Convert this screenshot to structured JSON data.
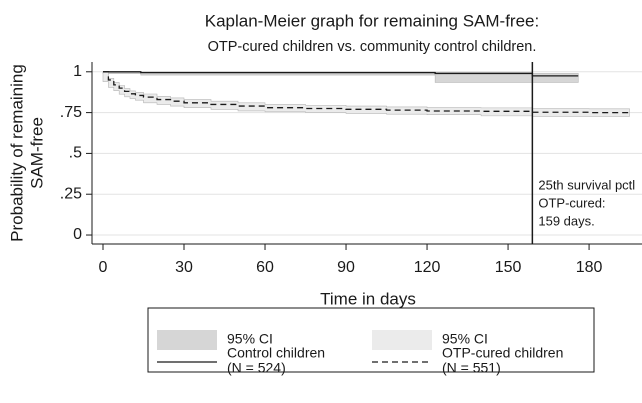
{
  "chart_data": {
    "type": "step",
    "title": "Kaplan-Meier graph for remaining SAM-free:",
    "subtitle": "OTP-cured children vs. community control children.",
    "xlabel": "Time in days",
    "ylabel": [
      "Probability of remaining",
      "SAM-free"
    ],
    "xlim": [
      -4.07,
      199.6
    ],
    "xticks": [
      0,
      30,
      60,
      90,
      120,
      150,
      180
    ],
    "ylim": [
      -0.055,
      1.06
    ],
    "yticks": [
      0,
      {
        "value": 0.25,
        "label": ".25"
      },
      {
        "value": 0.5,
        "label": ".5"
      },
      {
        "value": 0.75,
        "label": ".75"
      },
      1
    ],
    "grid": true,
    "series": [
      {
        "name": [
          "Control children",
          "(N = 524)"
        ],
        "color": "#1a1a1a",
        "dash": false,
        "ci_name": "95% CI",
        "ci_color": "#d6d6d6",
        "x": [
          0,
          14,
          123,
          159,
          176
        ],
        "values": [
          1,
          0.995,
          0.99,
          0.975,
          0.975
        ],
        "ci_lower": [
          1,
          0.988,
          0.98,
          0.935,
          0.935
        ],
        "ci_upper": [
          1,
          1,
          0.998,
          0.99,
          0.99
        ]
      },
      {
        "name": [
          "OTP-cured children",
          "(N = 551)"
        ],
        "color": "#1a1a1a",
        "dash": true,
        "ci_name": "95% CI",
        "ci_color": "#ebebeb",
        "x": [
          0,
          2,
          4,
          6,
          8,
          10,
          12,
          15,
          20,
          25,
          30,
          40,
          50,
          60,
          75,
          90,
          105,
          120,
          140,
          159,
          180,
          195
        ],
        "values": [
          1,
          0.95,
          0.92,
          0.9,
          0.88,
          0.865,
          0.855,
          0.845,
          0.83,
          0.82,
          0.81,
          0.8,
          0.79,
          0.78,
          0.775,
          0.77,
          0.765,
          0.76,
          0.758,
          0.752,
          0.75,
          0.75
        ],
        "ci_lower": [
          1,
          0.94,
          0.905,
          0.884,
          0.863,
          0.847,
          0.836,
          0.826,
          0.81,
          0.8,
          0.79,
          0.78,
          0.77,
          0.76,
          0.755,
          0.75,
          0.745,
          0.74,
          0.737,
          0.73,
          0.727,
          0.727
        ],
        "ci_upper": [
          1,
          0.96,
          0.935,
          0.916,
          0.897,
          0.883,
          0.874,
          0.864,
          0.85,
          0.84,
          0.83,
          0.82,
          0.81,
          0.8,
          0.795,
          0.79,
          0.785,
          0.78,
          0.779,
          0.774,
          0.773,
          0.773
        ]
      }
    ],
    "annotation": {
      "x": 159,
      "text": [
        "25th survival pctl",
        "OTP-cured:",
        "159 days."
      ]
    }
  }
}
